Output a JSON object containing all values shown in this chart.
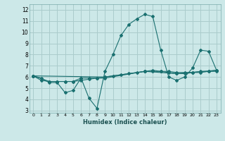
{
  "xlabel": "Humidex (Indice chaleur)",
  "ylabel": "",
  "bg_color": "#cce8e8",
  "grid_color": "#aacccc",
  "line_color": "#1a7070",
  "xlim": [
    -0.5,
    23.5
  ],
  "ylim": [
    2.8,
    12.5
  ],
  "yticks": [
    3,
    4,
    5,
    6,
    7,
    8,
    9,
    10,
    11,
    12
  ],
  "xticks": [
    0,
    1,
    2,
    3,
    4,
    5,
    6,
    7,
    8,
    9,
    10,
    11,
    12,
    13,
    14,
    15,
    16,
    17,
    18,
    19,
    20,
    21,
    22,
    23
  ],
  "line1_x": [
    0,
    1,
    2,
    3,
    4,
    5,
    6,
    7,
    8,
    9,
    10,
    11,
    12,
    13,
    14,
    15,
    16,
    17,
    18,
    19,
    20,
    21,
    22,
    23
  ],
  "line1_y": [
    6.1,
    5.9,
    5.5,
    5.5,
    4.6,
    4.8,
    5.9,
    4.1,
    3.2,
    6.5,
    8.0,
    9.7,
    10.7,
    11.2,
    11.6,
    11.4,
    8.4,
    6.0,
    5.7,
    6.0,
    6.8,
    8.4,
    8.3,
    6.6
  ],
  "line2_x": [
    0,
    1,
    2,
    3,
    4,
    5,
    6,
    7,
    8,
    9,
    10,
    11,
    12,
    13,
    14,
    15,
    16,
    17,
    18,
    19,
    20,
    21,
    22,
    23
  ],
  "line2_y": [
    6.1,
    5.7,
    5.6,
    5.6,
    5.6,
    5.6,
    5.7,
    5.8,
    5.9,
    6.0,
    6.1,
    6.2,
    6.3,
    6.4,
    6.5,
    6.6,
    6.5,
    6.4,
    6.3,
    6.3,
    6.4,
    6.5,
    6.5,
    6.6
  ],
  "line3_x": [
    0,
    2,
    3,
    4,
    5,
    6,
    7,
    8,
    9,
    14,
    15,
    16,
    17,
    18,
    19,
    20,
    21,
    22,
    23
  ],
  "line3_y": [
    6.1,
    5.6,
    5.6,
    5.6,
    5.6,
    5.9,
    5.9,
    5.9,
    5.9,
    6.5,
    6.5,
    6.5,
    6.5,
    6.4,
    6.4,
    6.4,
    6.4,
    6.5,
    6.5
  ],
  "line4_x": [
    0,
    9,
    14,
    18,
    23
  ],
  "line4_y": [
    6.1,
    6.0,
    6.5,
    6.3,
    6.6
  ]
}
